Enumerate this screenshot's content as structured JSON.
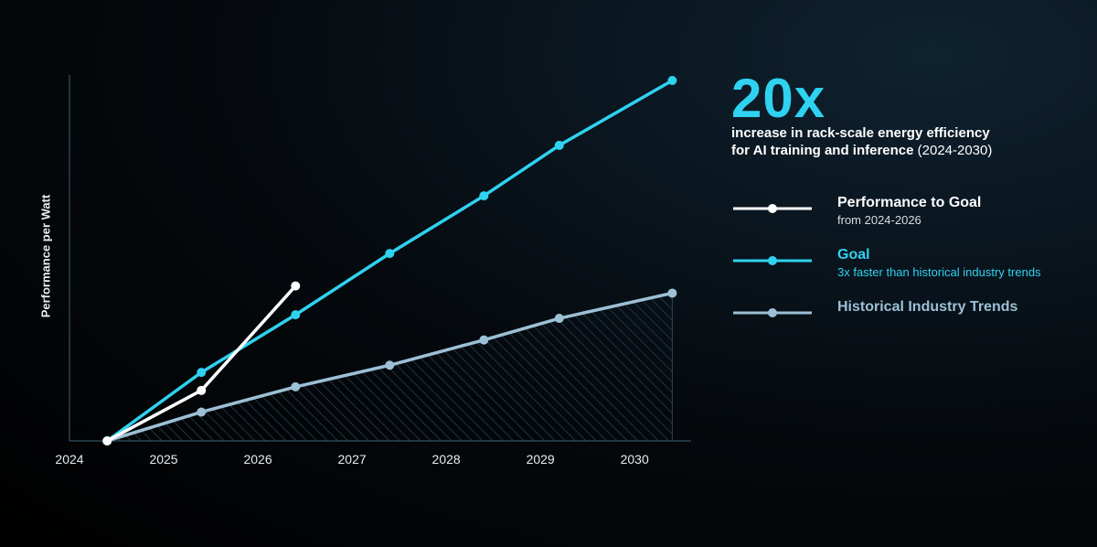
{
  "headline": {
    "value": "20x",
    "line1": "increase in rack-scale energy efficiency",
    "line2": "for AI training and inference",
    "years": "(2024-2030)"
  },
  "legend": [
    {
      "title": "Performance to Goal",
      "subtitle": "from 2024-2026",
      "color": "#ffffff",
      "subcolor": "#d9dde0"
    },
    {
      "title": "Goal",
      "subtitle": "3x faster than historical industry trends",
      "color": "#2fd2f0",
      "subcolor": "#2fd2f0"
    },
    {
      "title": "Historical Industry Trends",
      "subtitle": "",
      "color": "#9cc0d6",
      "subcolor": "#9cc0d6"
    }
  ],
  "chart_data": {
    "type": "line",
    "ylabel": "Performance per Watt",
    "xlabel": "",
    "x_ticks": [
      "2024",
      "2025",
      "2026",
      "2027",
      "2028",
      "2029",
      "2030"
    ],
    "xlim": [
      2024,
      2030.6
    ],
    "ylim": [
      0,
      1
    ],
    "grid": false,
    "series": [
      {
        "name": "Performance to Goal",
        "color": "#ffffff",
        "x": [
          2024.4,
          2025.4,
          2026.4
        ],
        "y": [
          0,
          0.14,
          0.43
        ]
      },
      {
        "name": "Goal",
        "color": "#2fd2f0",
        "x": [
          2024.4,
          2025.4,
          2026.4,
          2027.4,
          2028.4,
          2029.2,
          2030.4
        ],
        "y": [
          0,
          0.19,
          0.35,
          0.52,
          0.68,
          0.82,
          1.0
        ]
      },
      {
        "name": "Historical Industry Trends",
        "color": "#9cc0d6",
        "x": [
          2024.4,
          2025.4,
          2026.4,
          2027.4,
          2028.4,
          2029.2,
          2030.4
        ],
        "y": [
          0,
          0.08,
          0.15,
          0.21,
          0.28,
          0.34,
          0.41
        ]
      }
    ]
  }
}
